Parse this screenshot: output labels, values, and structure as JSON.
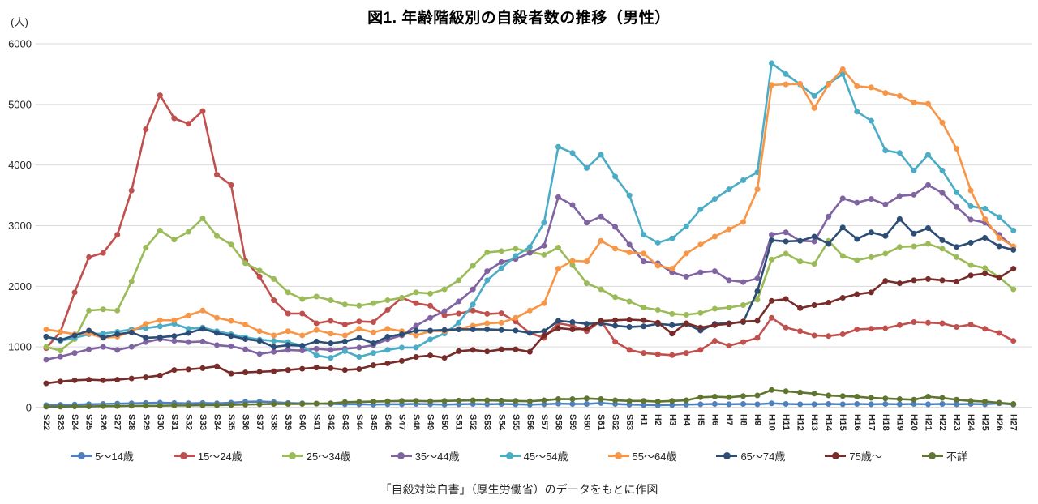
{
  "title": "図1. 年齢階級別の自殺者数の推移（男性）",
  "source_note": "「自殺対策白書」（厚生労働省）のデータをもとに作図",
  "y_axis": {
    "unit": "(人)",
    "ticks": [
      0,
      1000,
      2000,
      3000,
      4000,
      5000,
      6000
    ]
  },
  "chart_data": {
    "type": "line",
    "title": "図1. 年齢階級別の自殺者数の推移（男性）",
    "ylabel": "(人)",
    "ylim": [
      0,
      6000
    ],
    "grid": true,
    "legend_position": "bottom",
    "categories": [
      "S22",
      "S23",
      "S24",
      "S25",
      "S26",
      "S27",
      "S28",
      "S29",
      "S30",
      "S31",
      "S32",
      "S33",
      "S34",
      "S35",
      "S36",
      "S37",
      "S38",
      "S39",
      "S40",
      "S41",
      "S42",
      "S43",
      "S44",
      "S45",
      "S46",
      "S47",
      "S48",
      "S49",
      "S50",
      "S51",
      "S52",
      "S53",
      "S54",
      "S55",
      "S56",
      "S57",
      "S58",
      "S59",
      "S60",
      "S61",
      "S62",
      "S63",
      "H1",
      "H2",
      "H3",
      "H4",
      "H5",
      "H6",
      "H7",
      "H8",
      "H9",
      "H10",
      "H11",
      "H12",
      "H13",
      "H14",
      "H15",
      "H16",
      "H17",
      "H18",
      "H19",
      "H20",
      "H21",
      "H22",
      "H23",
      "H24",
      "H25",
      "H26",
      "H27"
    ],
    "series": [
      {
        "name": "5〜14歳",
        "color": "#4F81BD",
        "values": [
          40,
          45,
          50,
          55,
          60,
          65,
          70,
          75,
          80,
          75,
          70,
          75,
          70,
          80,
          95,
          100,
          90,
          75,
          70,
          65,
          60,
          55,
          55,
          50,
          55,
          55,
          60,
          55,
          50,
          55,
          60,
          55,
          60,
          55,
          50,
          55,
          65,
          60,
          60,
          75,
          60,
          50,
          45,
          40,
          45,
          50,
          55,
          60,
          55,
          60,
          55,
          70,
          60,
          55,
          55,
          60,
          55,
          60,
          55,
          60,
          55,
          60,
          55,
          60,
          55,
          60,
          55,
          70,
          50
        ]
      },
      {
        "name": "15〜24歳",
        "color": "#C0504D",
        "values": [
          980,
          1250,
          1900,
          2480,
          2550,
          2850,
          3580,
          4590,
          5150,
          4770,
          4680,
          4890,
          3840,
          3670,
          2420,
          2160,
          1770,
          1550,
          1550,
          1390,
          1430,
          1370,
          1420,
          1410,
          1610,
          1810,
          1720,
          1680,
          1520,
          1550,
          1600,
          1545,
          1555,
          1420,
          1230,
          1150,
          1390,
          1350,
          1260,
          1430,
          1085,
          950,
          900,
          880,
          865,
          900,
          950,
          1100,
          1020,
          1080,
          1150,
          1480,
          1320,
          1260,
          1190,
          1180,
          1210,
          1290,
          1300,
          1310,
          1360,
          1410,
          1400,
          1390,
          1330,
          1370,
          1300,
          1230,
          1100
        ]
      },
      {
        "name": "25〜34歳",
        "color": "#9BBB59",
        "values": [
          1000,
          940,
          1130,
          1600,
          1620,
          1600,
          2080,
          2640,
          2920,
          2770,
          2900,
          3120,
          2830,
          2690,
          2380,
          2260,
          2120,
          1900,
          1790,
          1830,
          1770,
          1700,
          1680,
          1720,
          1770,
          1810,
          1900,
          1880,
          1950,
          2100,
          2340,
          2560,
          2580,
          2620,
          2570,
          2520,
          2640,
          2350,
          2050,
          1950,
          1820,
          1750,
          1650,
          1610,
          1545,
          1530,
          1560,
          1630,
          1650,
          1690,
          1780,
          2440,
          2540,
          2410,
          2370,
          2750,
          2500,
          2430,
          2480,
          2540,
          2650,
          2660,
          2700,
          2620,
          2480,
          2350,
          2300,
          2150,
          1950
        ]
      },
      {
        "name": "35〜44歳",
        "color": "#8064A2",
        "values": [
          790,
          840,
          900,
          960,
          1000,
          950,
          1000,
          1080,
          1130,
          1100,
          1080,
          1090,
          1030,
          1010,
          960,
          885,
          920,
          950,
          940,
          970,
          950,
          970,
          990,
          1030,
          1125,
          1190,
          1350,
          1480,
          1590,
          1750,
          1950,
          2250,
          2400,
          2450,
          2550,
          2670,
          3470,
          3340,
          3050,
          3150,
          2980,
          2690,
          2410,
          2380,
          2230,
          2160,
          2230,
          2250,
          2100,
          2070,
          2130,
          2850,
          2890,
          2750,
          2740,
          3150,
          3450,
          3380,
          3440,
          3350,
          3490,
          3510,
          3670,
          3540,
          3310,
          3100,
          3050,
          2850,
          2650
        ]
      },
      {
        "name": "45〜54歳",
        "color": "#4BACC6",
        "values": [
          1170,
          1100,
          1150,
          1210,
          1220,
          1250,
          1290,
          1310,
          1340,
          1380,
          1300,
          1320,
          1260,
          1210,
          1160,
          1120,
          1100,
          1080,
          1020,
          860,
          820,
          930,
          835,
          900,
          950,
          990,
          990,
          1125,
          1220,
          1400,
          1700,
          2100,
          2300,
          2500,
          2650,
          3050,
          4300,
          4200,
          3950,
          4170,
          3810,
          3500,
          2850,
          2720,
          2790,
          2990,
          3270,
          3440,
          3600,
          3750,
          3880,
          5680,
          5500,
          5330,
          5140,
          5340,
          5500,
          4880,
          4730,
          4240,
          4200,
          3910,
          4170,
          3910,
          3550,
          3320,
          3280,
          3140,
          2920
        ]
      },
      {
        "name": "55〜64歳",
        "color": "#F79646",
        "values": [
          1290,
          1250,
          1210,
          1220,
          1150,
          1170,
          1260,
          1380,
          1440,
          1440,
          1520,
          1600,
          1480,
          1430,
          1370,
          1260,
          1190,
          1260,
          1190,
          1280,
          1220,
          1190,
          1300,
          1240,
          1300,
          1260,
          1190,
          1260,
          1260,
          1300,
          1350,
          1390,
          1400,
          1480,
          1600,
          1720,
          2290,
          2420,
          2410,
          2750,
          2620,
          2560,
          2540,
          2340,
          2290,
          2540,
          2690,
          2820,
          2940,
          3060,
          3600,
          5320,
          5330,
          5340,
          4940,
          5330,
          5580,
          5300,
          5280,
          5190,
          5140,
          5030,
          5010,
          4700,
          4270,
          3580,
          3110,
          2800,
          2660
        ]
      },
      {
        "name": "65〜74歳",
        "color": "#2C4D75",
        "values": [
          1170,
          1115,
          1190,
          1270,
          1155,
          1210,
          1240,
          1150,
          1160,
          1180,
          1230,
          1300,
          1230,
          1180,
          1130,
          1100,
          1000,
          1030,
          1020,
          1090,
          1060,
          1090,
          1150,
          1060,
          1170,
          1210,
          1270,
          1270,
          1280,
          1290,
          1290,
          1290,
          1280,
          1270,
          1230,
          1260,
          1430,
          1410,
          1380,
          1390,
          1350,
          1330,
          1340,
          1380,
          1360,
          1380,
          1270,
          1380,
          1390,
          1410,
          1920,
          2760,
          2740,
          2750,
          2820,
          2700,
          2970,
          2780,
          2890,
          2830,
          3110,
          2870,
          2960,
          2760,
          2650,
          2720,
          2800,
          2660,
          2600
        ]
      },
      {
        "name": "75歳〜",
        "color": "#772C2A",
        "values": [
          400,
          430,
          450,
          460,
          450,
          460,
          480,
          500,
          530,
          620,
          630,
          650,
          680,
          560,
          580,
          590,
          600,
          620,
          640,
          660,
          650,
          620,
          635,
          700,
          730,
          770,
          835,
          860,
          820,
          930,
          950,
          925,
          960,
          960,
          920,
          1190,
          1310,
          1290,
          1300,
          1430,
          1440,
          1450,
          1440,
          1400,
          1220,
          1390,
          1320,
          1360,
          1380,
          1420,
          1430,
          1760,
          1790,
          1640,
          1690,
          1730,
          1810,
          1870,
          1900,
          2090,
          2050,
          2100,
          2120,
          2100,
          2080,
          2180,
          2210,
          2140,
          2290
        ]
      },
      {
        "name": "不詳",
        "color": "#5F7530",
        "values": [
          15,
          15,
          20,
          20,
          25,
          25,
          30,
          30,
          30,
          35,
          35,
          40,
          40,
          45,
          50,
          55,
          60,
          60,
          60,
          65,
          70,
          90,
          95,
          100,
          105,
          110,
          110,
          105,
          110,
          115,
          120,
          120,
          115,
          110,
          105,
          120,
          140,
          140,
          150,
          140,
          120,
          110,
          110,
          100,
          110,
          120,
          170,
          180,
          170,
          190,
          200,
          290,
          270,
          250,
          230,
          200,
          190,
          180,
          160,
          150,
          140,
          130,
          180,
          160,
          130,
          110,
          100,
          80,
          60
        ]
      }
    ]
  },
  "style": {
    "grid_color": "#D9D9D9",
    "axis_color": "#BFBFBF",
    "text_color": "#262626"
  }
}
